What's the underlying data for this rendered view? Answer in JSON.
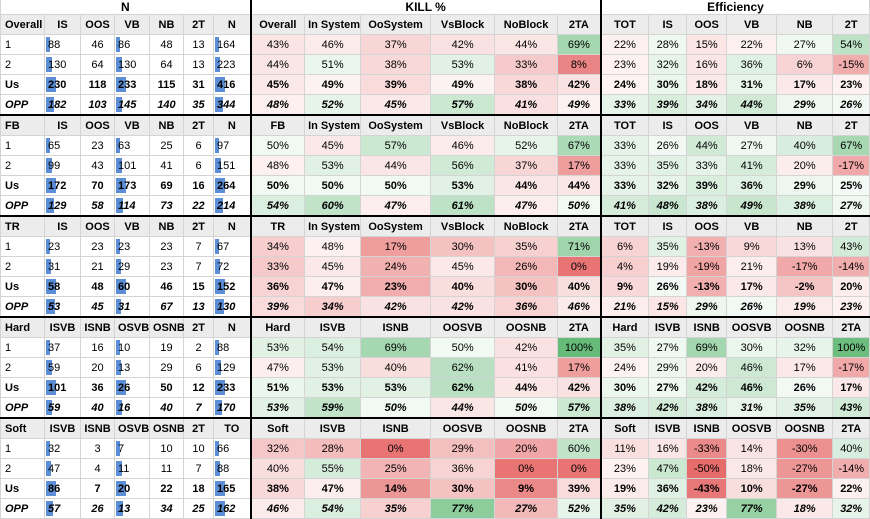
{
  "sections_titles": {
    "n": "N",
    "kill": "KILL %",
    "eff": "Efficiency"
  },
  "colors": {
    "bar": "#5b8ed6",
    "pos": "#4caf62",
    "neg": "#e04646"
  },
  "chart_data": {
    "type": "table",
    "blocks": [
      {
        "headers": {
          "n": [
            "Overall",
            "IS",
            "OOS",
            "VB",
            "NB",
            "2T",
            "N"
          ],
          "k": [
            "Overall",
            "In System",
            "OoSystem",
            "VsBlock",
            "NoBlock",
            "2TA"
          ],
          "e": [
            "TOT",
            "IS",
            "OOS",
            "VB",
            "NB",
            "2T"
          ]
        },
        "rows": [
          {
            "label": "1",
            "n": [
              "88",
              "46",
              "86",
              "48",
              "13",
              "164"
            ],
            "k": [
              "43%",
              "46%",
              "37%",
              "42%",
              "44%",
              "69%"
            ],
            "e": [
              "22%",
              "28%",
              "15%",
              "22%",
              "27%",
              "54%"
            ]
          },
          {
            "label": "2",
            "n": [
              "130",
              "64",
              "130",
              "64",
              "13",
              "223"
            ],
            "k": [
              "44%",
              "51%",
              "38%",
              "53%",
              "33%",
              "8%"
            ],
            "e": [
              "23%",
              "32%",
              "16%",
              "36%",
              "6%",
              "-15%"
            ]
          },
          {
            "label": "Us",
            "n": [
              "230",
              "118",
              "233",
              "115",
              "31",
              "416"
            ],
            "k": [
              "45%",
              "49%",
              "39%",
              "49%",
              "38%",
              "42%"
            ],
            "e": [
              "24%",
              "30%",
              "18%",
              "31%",
              "17%",
              "23%"
            ]
          },
          {
            "label": "OPP",
            "n": [
              "182",
              "103",
              "145",
              "140",
              "35",
              "344"
            ],
            "k": [
              "48%",
              "52%",
              "45%",
              "57%",
              "41%",
              "49%"
            ],
            "e": [
              "33%",
              "39%",
              "34%",
              "44%",
              "29%",
              "26%"
            ]
          }
        ]
      },
      {
        "headers": {
          "n": [
            "FB",
            "IS",
            "OOS",
            "VB",
            "NB",
            "2T",
            "N"
          ],
          "k": [
            "FB",
            "In System",
            "OoSystem",
            "VsBlock",
            "NoBlock",
            "2TA"
          ],
          "e": [
            "TOT",
            "IS",
            "OOS",
            "VB",
            "NB",
            "2T"
          ]
        },
        "rows": [
          {
            "label": "1",
            "n": [
              "65",
              "23",
              "63",
              "25",
              "6",
              "97"
            ],
            "k": [
              "50%",
              "45%",
              "57%",
              "46%",
              "52%",
              "67%"
            ],
            "e": [
              "33%",
              "26%",
              "44%",
              "27%",
              "40%",
              "67%"
            ]
          },
          {
            "label": "2",
            "n": [
              "99",
              "43",
              "101",
              "41",
              "6",
              "151"
            ],
            "k": [
              "48%",
              "53%",
              "44%",
              "56%",
              "37%",
              "17%"
            ],
            "e": [
              "33%",
              "35%",
              "33%",
              "41%",
              "20%",
              "-17%"
            ]
          },
          {
            "label": "Us",
            "n": [
              "172",
              "70",
              "173",
              "69",
              "16",
              "264"
            ],
            "k": [
              "50%",
              "50%",
              "50%",
              "53%",
              "44%",
              "44%"
            ],
            "e": [
              "33%",
              "32%",
              "39%",
              "36%",
              "29%",
              "25%"
            ]
          },
          {
            "label": "OPP",
            "n": [
              "129",
              "58",
              "114",
              "73",
              "22",
              "214"
            ],
            "k": [
              "54%",
              "60%",
              "47%",
              "61%",
              "47%",
              "50%"
            ],
            "e": [
              "41%",
              "48%",
              "38%",
              "49%",
              "38%",
              "27%"
            ]
          }
        ]
      },
      {
        "headers": {
          "n": [
            "TR",
            "IS",
            "OOS",
            "VB",
            "NB",
            "2T",
            "N"
          ],
          "k": [
            "TR",
            "In System",
            "OoSystem",
            "VsBlock",
            "NoBlock",
            "2TA"
          ],
          "e": [
            "TOT",
            "IS",
            "OOS",
            "VB",
            "NB",
            "2T"
          ]
        },
        "rows": [
          {
            "label": "1",
            "n": [
              "23",
              "23",
              "23",
              "23",
              "7",
              "67"
            ],
            "k": [
              "34%",
              "48%",
              "17%",
              "30%",
              "35%",
              "71%"
            ],
            "e": [
              "6%",
              "35%",
              "-13%",
              "9%",
              "13%",
              "43%"
            ]
          },
          {
            "label": "2",
            "n": [
              "31",
              "21",
              "29",
              "23",
              "7",
              "72"
            ],
            "k": [
              "33%",
              "45%",
              "24%",
              "45%",
              "26%",
              "0%"
            ],
            "e": [
              "4%",
              "19%",
              "-19%",
              "21%",
              "-17%",
              "-14%"
            ]
          },
          {
            "label": "Us",
            "n": [
              "58",
              "48",
              "60",
              "46",
              "15",
              "152"
            ],
            "k": [
              "36%",
              "47%",
              "23%",
              "40%",
              "30%",
              "40%"
            ],
            "e": [
              "9%",
              "26%",
              "-13%",
              "17%",
              "-2%",
              "20%"
            ]
          },
          {
            "label": "OPP",
            "n": [
              "53",
              "45",
              "31",
              "67",
              "13",
              "130"
            ],
            "k": [
              "39%",
              "34%",
              "42%",
              "42%",
              "36%",
              "46%"
            ],
            "e": [
              "21%",
              "15%",
              "29%",
              "26%",
              "19%",
              "23%"
            ]
          }
        ]
      },
      {
        "headers": {
          "n": [
            "Hard",
            "ISVB",
            "ISNB",
            "OSVB",
            "OSNB",
            "2T",
            "N"
          ],
          "k": [
            "Hard",
            "ISVB",
            "ISNB",
            "OOSVB",
            "OOSNB",
            "2TA"
          ],
          "e": [
            "Hard",
            "ISVB",
            "ISNB",
            "OOSVB",
            "OOSNB",
            "2TA"
          ]
        },
        "rows": [
          {
            "label": "1",
            "n": [
              "37",
              "16",
              "10",
              "19",
              "2",
              "88"
            ],
            "k": [
              "53%",
              "54%",
              "69%",
              "50%",
              "42%",
              "100%"
            ],
            "e": [
              "35%",
              "27%",
              "69%",
              "30%",
              "32%",
              "100%"
            ]
          },
          {
            "label": "2",
            "n": [
              "59",
              "20",
              "13",
              "29",
              "6",
              "129"
            ],
            "k": [
              "47%",
              "53%",
              "40%",
              "62%",
              "41%",
              "17%"
            ],
            "e": [
              "24%",
              "29%",
              "20%",
              "46%",
              "17%",
              "-17%"
            ]
          },
          {
            "label": "Us",
            "n": [
              "101",
              "36",
              "26",
              "50",
              "12",
              "233"
            ],
            "k": [
              "51%",
              "53%",
              "53%",
              "62%",
              "44%",
              "42%"
            ],
            "e": [
              "30%",
              "27%",
              "42%",
              "46%",
              "26%",
              "17%"
            ]
          },
          {
            "label": "OPP",
            "n": [
              "59",
              "40",
              "16",
              "40",
              "7",
              "170"
            ],
            "k": [
              "53%",
              "59%",
              "50%",
              "44%",
              "50%",
              "57%"
            ],
            "e": [
              "38%",
              "42%",
              "38%",
              "31%",
              "35%",
              "43%"
            ]
          }
        ]
      },
      {
        "headers": {
          "n": [
            "Soft",
            "ISVB",
            "ISNB",
            "OSVB",
            "OSNB",
            "2T",
            "TO"
          ],
          "k": [
            "Soft",
            "ISVB",
            "ISNB",
            "OOSVB",
            "OOSNB",
            "2TA"
          ],
          "e": [
            "Soft",
            "ISVB",
            "ISNB",
            "OOSVB",
            "OOSNB",
            "2TA"
          ]
        },
        "rows": [
          {
            "label": "1",
            "n": [
              "32",
              "3",
              "7",
              "10",
              "10",
              "66"
            ],
            "k": [
              "32%",
              "28%",
              "0%",
              "29%",
              "20%",
              "60%"
            ],
            "e": [
              "11%",
              "16%",
              "-33%",
              "14%",
              "-30%",
              "40%"
            ]
          },
          {
            "label": "2",
            "n": [
              "47",
              "4",
              "11",
              "11",
              "7",
              "88"
            ],
            "k": [
              "40%",
              "55%",
              "25%",
              "36%",
              "0%",
              "0%"
            ],
            "e": [
              "23%",
              "47%",
              "-50%",
              "18%",
              "-27%",
              "-14%"
            ]
          },
          {
            "label": "Us",
            "n": [
              "86",
              "7",
              "20",
              "22",
              "18",
              "165"
            ],
            "k": [
              "38%",
              "47%",
              "14%",
              "30%",
              "9%",
              "39%"
            ],
            "e": [
              "19%",
              "36%",
              "-43%",
              "10%",
              "-27%",
              "22%"
            ]
          },
          {
            "label": "OPP",
            "n": [
              "57",
              "26",
              "13",
              "34",
              "25",
              "162"
            ],
            "k": [
              "46%",
              "54%",
              "35%",
              "77%",
              "27%",
              "52%"
            ],
            "e": [
              "35%",
              "42%",
              "23%",
              "77%",
              "18%",
              "32%"
            ]
          }
        ]
      }
    ]
  }
}
